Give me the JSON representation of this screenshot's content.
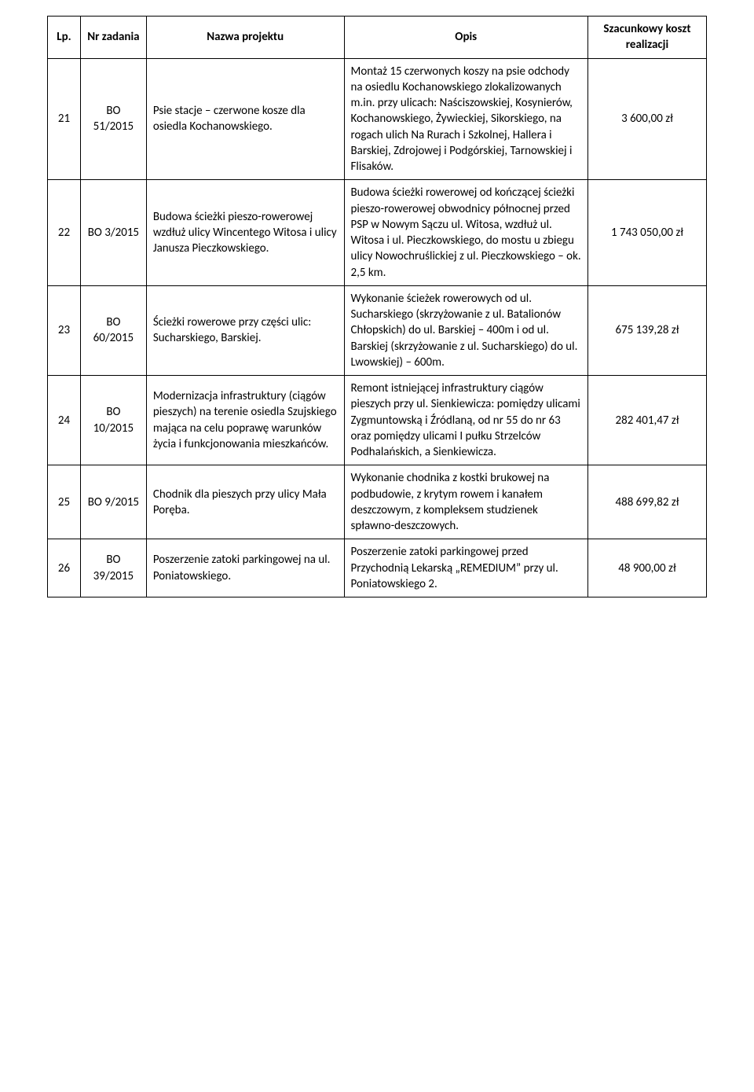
{
  "table": {
    "headers": {
      "lp": "Lp.",
      "nr": "Nr zadania",
      "name": "Nazwa projektu",
      "desc": "Opis",
      "cost": "Szacunkowy koszt realizacji"
    },
    "rows": [
      {
        "lp": "21",
        "nr": "BO 51/2015",
        "name": "Psie stacje – czerwone kosze dla osiedla Kochanowskiego.",
        "desc": "Montaż 15 czerwonych koszy na psie odchody na osiedlu Kochanowskiego zlokalizowanych m.in. przy ulicach: Naściszowskiej, Kosynierów, Kochanowskiego, Żywieckiej, Sikorskiego, na rogach ulich  Na Rurach i Szkolnej, Hallera i Barskiej, Zdrojowej i Podgórskiej, Tarnowskiej i Flisaków.",
        "cost": "3 600,00 zł"
      },
      {
        "lp": "22",
        "nr": "BO 3/2015",
        "name": "Budowa ścieżki pieszo-rowerowej wzdłuż ulicy Wincentego Witosa i ulicy Janusza Pieczkowskiego.",
        "desc": "Budowa ścieżki rowerowej od kończącej ścieżki pieszo-rowerowej obwodnicy północnej przed PSP w Nowym Sączu ul. Witosa, wzdłuż ul. Witosa i ul. Pieczkowskiego, do mostu u zbiegu ulicy Nowochruślickiej z ul. Pieczkowskiego – ok. 2,5 km.",
        "cost": "1 743 050,00 zł"
      },
      {
        "lp": "23",
        "nr": "BO 60/2015",
        "name": "Ścieżki rowerowe przy części ulic: Sucharskiego, Barskiej.",
        "desc": "Wykonanie ścieżek rowerowych od ul. Sucharskiego (skrzyżowanie z ul. Batalionów Chłopskich) do ul. Barskiej – 400m i od ul. Barskiej (skrzyżowanie z ul. Sucharskiego) do ul. Lwowskiej) – 600m.",
        "cost": "675 139,28 zł"
      },
      {
        "lp": "24",
        "nr": "BO 10/2015",
        "name": "Modernizacja infrastruktury (ciągów pieszych) na terenie osiedla Szujskiego mająca na celu poprawę warunków życia i funkcjonowania mieszkańców.",
        "desc": "Remont istniejącej infrastruktury ciągów pieszych przy ul. Sienkiewicza: pomiędzy ulicami Zygmuntowską i Źródlaną, od nr 55 do nr 63 oraz pomiędzy ulicami I pułku Strzelców Podhalańskich, a Sienkiewicza.",
        "cost": "282 401,47 zł"
      },
      {
        "lp": "25",
        "nr": "BO 9/2015",
        "name": "Chodnik dla pieszych przy ulicy Mała Poręba.",
        "desc": "Wykonanie chodnika z kostki brukowej na podbudowie, z krytym rowem i kanałem deszczowym, z kompleksem studzienek spławno-deszczowych.",
        "cost": "488 699,82 zł"
      },
      {
        "lp": "26",
        "nr": "BO 39/2015",
        "name": "Poszerzenie zatoki parkingowej na ul. Poniatowskiego.",
        "desc": "Poszerzenie zatoki parkingowej przed Przychodnią Lekarską „REMEDIUM” przy ul. Poniatowskiego 2.",
        "cost": "48 900,00 zł"
      }
    ]
  }
}
